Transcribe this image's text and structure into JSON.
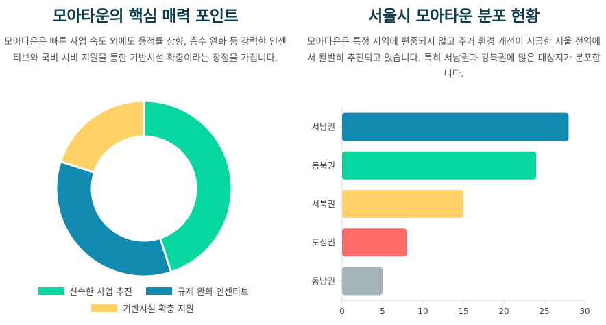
{
  "left": {
    "title": "모아타운의 핵심 매력 포인트",
    "description": "모아타운은 빠른 사업 속도 외에도 용적률 상향, 층수 완화 등 강력한 인센티브와 국비·시비 지원을 통한 기반시설 확충이라는 장점을 가집니다."
  },
  "right": {
    "title": "서울시 모아타운 분포 현황",
    "description": "모아타운은 특정 지역에 편중되지 않고 주거 환경 개선이 시급한 서울 전역에서 활발히 추진되고 있습니다. 특히 서남권과 강북권에 많은 대상지가 분포합니다."
  },
  "chart_data": [
    {
      "type": "pie",
      "variant": "doughnut",
      "labels": [
        "신속한 사업 추진",
        "규제 완화 인센티브",
        "기반시설 확충 지원"
      ],
      "values": [
        45,
        35,
        20
      ],
      "colors": [
        "#06d6a0",
        "#118ab2",
        "#ffd166"
      ],
      "legend_position": "bottom"
    },
    {
      "type": "bar",
      "orientation": "horizontal",
      "categories": [
        "서남권",
        "동북권",
        "서북권",
        "도심권",
        "동남권"
      ],
      "values": [
        28,
        24,
        15,
        8,
        5
      ],
      "colors": [
        "#118ab2",
        "#06d6a0",
        "#ffd166",
        "#ff6b6b",
        "#a3b3b8"
      ],
      "xlim": [
        0,
        30
      ],
      "xticks": [
        0,
        5,
        10,
        15,
        20,
        25,
        30
      ],
      "grid": false
    }
  ]
}
